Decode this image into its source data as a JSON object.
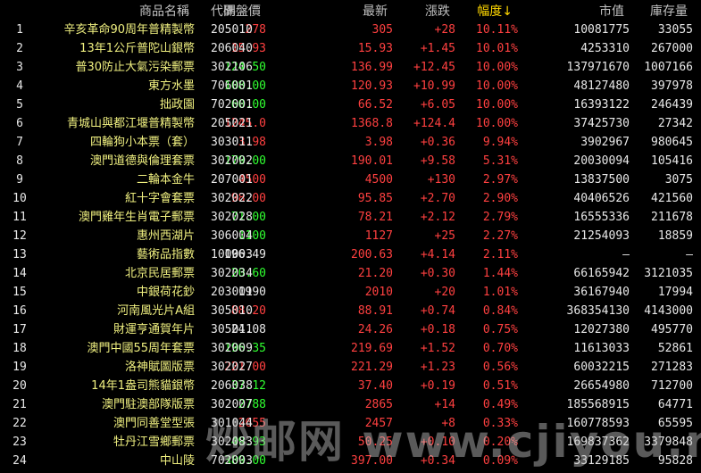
{
  "table": {
    "header": [
      "商品名稱",
      "代碼",
      "開盤價",
      "最新",
      "漲跌",
      "幅度↓",
      "市值",
      "庫存量"
    ],
    "rows": [
      [
        "1",
        "辛亥革命90周年普精製幣",
        "205010",
        "278",
        "305",
        "+28",
        "10.11%",
        "10081775",
        "33055"
      ],
      [
        "2",
        "13年1公斤普陀山銀幣",
        "206040",
        "15.93",
        "15.93",
        "+1.45",
        "10.01%",
        "4253310",
        "267000"
      ],
      [
        "3",
        "普30防止大氣污染郵票",
        "302106",
        "124.50",
        "136.99",
        "+12.45",
        "10.00%",
        "137971670",
        "1007166"
      ],
      [
        "4",
        "東方水墨",
        "706001",
        "108.00",
        "120.93",
        "+10.99",
        "10.00%",
        "48127480",
        "397978"
      ],
      [
        "5",
        "拙政園",
        "702001",
        "60.00",
        "66.52",
        "+6.05",
        "10.00%",
        "16393122",
        "246439"
      ],
      [
        "6",
        "青城山與都江堰普精製幣",
        "205021",
        "1245.0",
        "1368.8",
        "+124.4",
        "10.00%",
        "37425730",
        "27342"
      ],
      [
        "7",
        "四輪狗小本票（套）",
        "303011",
        "3.98",
        "3.98",
        "+0.36",
        "9.94%",
        "3902967",
        "980645"
      ],
      [
        "8",
        "澳門道德與倫理套票",
        "302002",
        "179.00",
        "190.01",
        "+9.58",
        "5.31%",
        "20030094",
        "105416"
      ],
      [
        "9",
        "二輪本金牛",
        "207001",
        "4500",
        "4500",
        "+130",
        "2.97%",
        "13837500",
        "3075"
      ],
      [
        "10",
        "紅十字會套票",
        "302022",
        "98.00",
        "95.85",
        "+2.70",
        "2.90%",
        "40406526",
        "421560"
      ],
      [
        "11",
        "澳門雞年生肖電子郵票",
        "302028",
        "71.00",
        "78.21",
        "+2.12",
        "2.79%",
        "16555336",
        "211678"
      ],
      [
        "12",
        "惠州西湖片",
        "306004",
        "1100",
        "1127",
        "+25",
        "2.27%",
        "21254093",
        "18859"
      ],
      [
        "13",
        "藝術品指數",
        "100003",
        "196.49",
        "200.63",
        "+4.14",
        "2.11%",
        "—",
        "—"
      ],
      [
        "14",
        "北京民居郵票",
        "302034",
        "20.60",
        "21.20",
        "+0.30",
        "1.44%",
        "66165942",
        "3121035"
      ],
      [
        "15",
        "中銀荷花鈔",
        "203001",
        "1990",
        "2010",
        "+20",
        "1.01%",
        "36167940",
        "17994"
      ],
      [
        "16",
        "河南風光片A組",
        "305010",
        "88.20",
        "88.91",
        "+0.74",
        "0.84%",
        "368354130",
        "4143000"
      ],
      [
        "17",
        "財運亨通賀年片",
        "305011",
        "24.08",
        "24.26",
        "+0.18",
        "0.75%",
        "12027380",
        "495770"
      ],
      [
        "18",
        "澳門中國55周年套票",
        "302009",
        "196.35",
        "219.69",
        "+1.52",
        "0.70%",
        "11613033",
        "52861"
      ],
      [
        "19",
        "洛神賦圖版票",
        "302027",
        "221.00",
        "221.29",
        "+1.23",
        "0.56%",
        "60032215",
        "271283"
      ],
      [
        "20",
        "14年1盎司熊貓銀幣",
        "206038",
        "37.12",
        "37.40",
        "+0.19",
        "0.51%",
        "26654980",
        "712700"
      ],
      [
        "21",
        "澳門駐澳部隊版票",
        "302007",
        "2788",
        "2865",
        "+14",
        "0.49%",
        "185568915",
        "64771"
      ],
      [
        "22",
        "澳門同善堂型張",
        "301044",
        "2655",
        "2457",
        "+8",
        "0.33%",
        "160778593",
        "65595"
      ],
      [
        "23",
        "牡丹江雪鄉郵票",
        "302083",
        "49.93",
        "50.25",
        "+0.10",
        "0.20%",
        "169837362",
        "3379848"
      ],
      [
        "24",
        "中山陵",
        "702003",
        "389.00",
        "397.00",
        "+0.34",
        "0.09%",
        "33129185",
        "95828"
      ]
    ],
    "open_colors": [
      "#ff4040",
      "#ff4040",
      "#30ff30",
      "#30ff30",
      "#30ff30",
      "#ff4040",
      "#ff4040",
      "#30ff30",
      "#ff4040",
      "#ff4040",
      "#30ff30",
      "#30ff30",
      "#e8e8e8",
      "#30ff30",
      "#e8e8e8",
      "#ff4040",
      "#e8e8e8",
      "#30ff30",
      "#ff4040",
      "#30ff30",
      "#30ff30",
      "#ff4040",
      "#30ff30",
      "#30ff30"
    ],
    "watermark": "炒邮网 www.cjiyou.net"
  }
}
